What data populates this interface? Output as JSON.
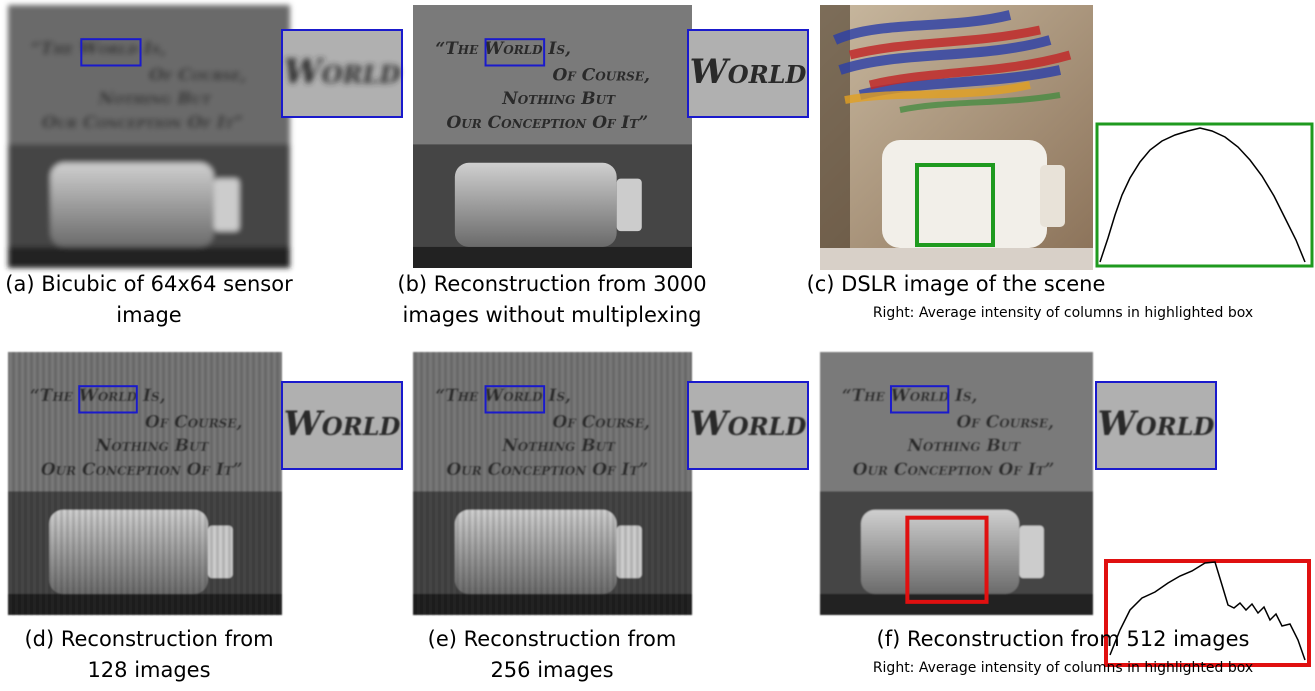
{
  "panels": [
    {
      "caption": [
        "(a) Bicubic of 64x64 sensor",
        "image"
      ]
    },
    {
      "caption": [
        "(b) Reconstruction from 3000",
        "images without multiplexing"
      ]
    },
    {
      "caption": [
        "(c) DSLR image of the scene"
      ],
      "note": "Right: Average intensity of columns in highlighted box"
    },
    {
      "caption": [
        "(d) Reconstruction from",
        "128 images"
      ]
    },
    {
      "caption": [
        "(e) Reconstruction from",
        "256 images"
      ]
    },
    {
      "caption": [
        "(f) Reconstruction from 512 images"
      ],
      "note": "Right: Average intensity of columns in highlighted box"
    }
  ],
  "scene_text": [
    "“The World Is,",
    "Of Course,",
    "Nothing But",
    "Our Conception Of It”"
  ],
  "zoom_word": "World"
}
